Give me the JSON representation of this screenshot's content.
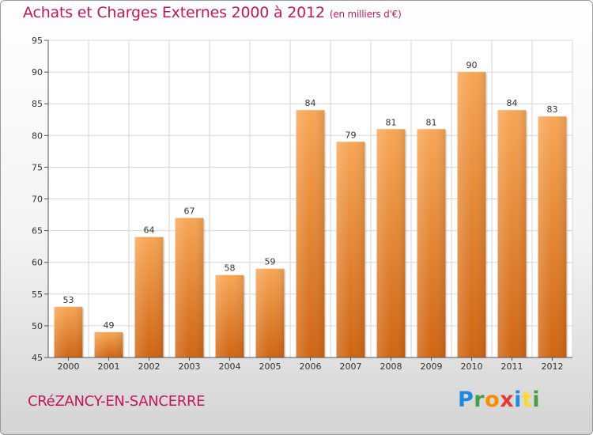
{
  "header": {
    "title": "Achats et Charges Externes 2000 à 2012",
    "subtitle": "(en milliers d'€)"
  },
  "footer": {
    "commune": "CRéZANCY-EN-SANCERRE"
  },
  "logo": {
    "letters": [
      "P",
      "r",
      "o",
      "x",
      "i",
      "t",
      "i"
    ],
    "colors": [
      "#1e88e5",
      "#43a047",
      "#fb8c00",
      "#e53935",
      "#1e88e5",
      "#fdd835",
      "#43a047"
    ]
  },
  "colors": {
    "bar_top": "#f7a655",
    "bar_bottom": "#cf6513",
    "title": "#c2185b",
    "grid": "#d6d6d6"
  },
  "chart_data": {
    "type": "bar",
    "title": "Achats et Charges Externes 2000 à 2012",
    "subtitle": "(en milliers d'€)",
    "categories": [
      "2000",
      "2001",
      "2002",
      "2003",
      "2004",
      "2005",
      "2006",
      "2007",
      "2008",
      "2009",
      "2010",
      "2011",
      "2012"
    ],
    "values": [
      53,
      49,
      64,
      67,
      58,
      59,
      84,
      79,
      81,
      81,
      90,
      84,
      83
    ],
    "ylim": [
      45,
      95
    ],
    "yticks": [
      45,
      50,
      55,
      60,
      65,
      70,
      75,
      80,
      85,
      90,
      95
    ],
    "grid": true,
    "data_labels": true
  }
}
